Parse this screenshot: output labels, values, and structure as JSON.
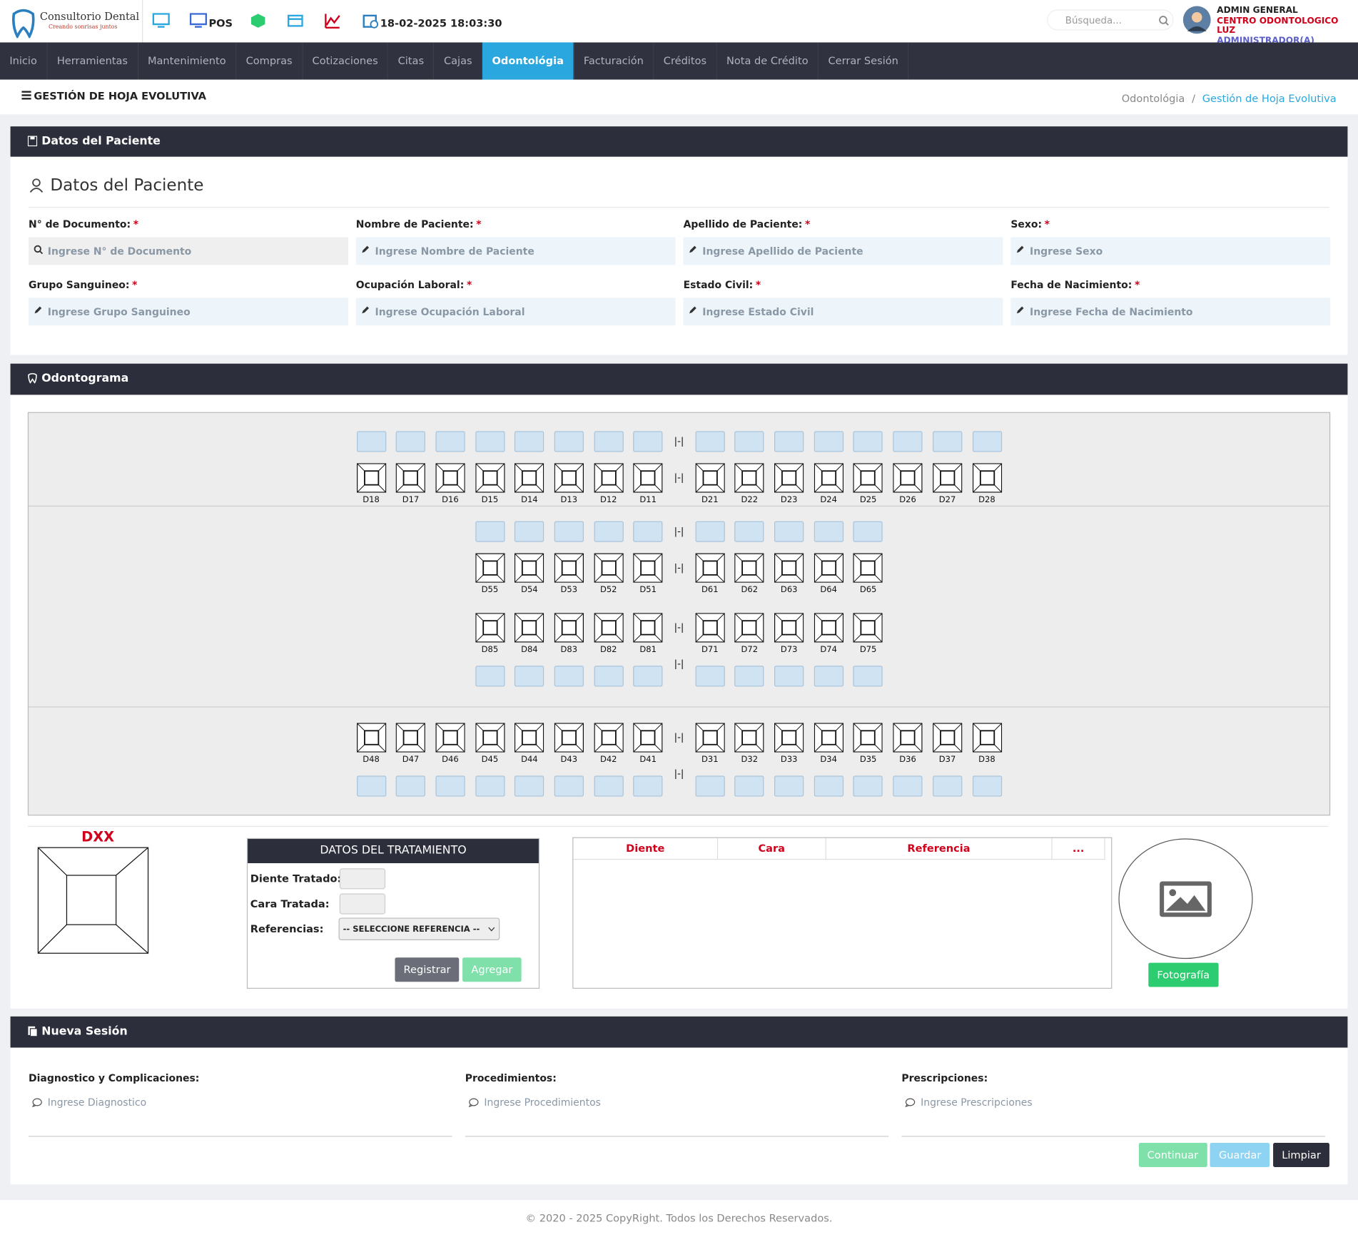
{
  "header": {
    "brand_name": "Consultorio Dental",
    "brand_tagline": "Creando sonrisas juntos",
    "pos": "POS",
    "datetime": "18-02-2025 18:03:30",
    "search_placeholder": "Búsqueda...",
    "user_name": "ADMIN GENERAL",
    "company": "CENTRO ODONTOLOGICO LUZ",
    "role": "ADMINISTRADOR(A) SUCURSAL"
  },
  "nav": {
    "items": [
      "Inicio",
      "Herramientas",
      "Mantenimiento",
      "Compras",
      "Cotizaciones",
      "Citas",
      "Cajas",
      "Odontológia",
      "Facturación",
      "Créditos",
      "Nota de Crédito",
      "Cerrar Sesión"
    ],
    "active": 7
  },
  "page": {
    "title": "GESTIÓN DE HOJA EVOLUTIVA",
    "breadcrumb": [
      "Odontológia",
      "Gestión de Hoja Evolutiva"
    ]
  },
  "patient": {
    "header": "Datos del Paciente",
    "subtitle": "Datos del Paciente",
    "required_mark": "*",
    "fields": [
      {
        "label": "N° de Documento:",
        "placeholder": "Ingrese N° de Documento"
      },
      {
        "label": "Nombre de Paciente:",
        "placeholder": "Ingrese Nombre de Paciente"
      },
      {
        "label": "Apellido de Paciente:",
        "placeholder": "Ingrese Apellido de Paciente"
      },
      {
        "label": "Sexo:",
        "placeholder": "Ingrese Sexo"
      },
      {
        "label": "Grupo Sanguineo:",
        "placeholder": "Ingrese Grupo Sanguineo"
      },
      {
        "label": "Ocupación Laboral:",
        "placeholder": "Ingrese Ocupación Laboral"
      },
      {
        "label": "Estado Civil:",
        "placeholder": "Ingrese Estado Civil"
      },
      {
        "label": "Fecha de Nacimiento:",
        "placeholder": "Ingrese Fecha de Nacimiento"
      }
    ]
  },
  "odontogram": {
    "header": "Odontograma",
    "separator": "|-|",
    "rows": [
      {
        "left": [
          "D18",
          "D17",
          "D16",
          "D15",
          "D14",
          "D13",
          "D12",
          "D11"
        ],
        "right": [
          "D21",
          "D22",
          "D23",
          "D24",
          "D25",
          "D26",
          "D27",
          "D28"
        ]
      },
      {
        "left": [
          "D55",
          "D54",
          "D53",
          "D52",
          "D51"
        ],
        "right": [
          "D61",
          "D62",
          "D63",
          "D64",
          "D65"
        ]
      },
      {
        "left": [
          "D85",
          "D84",
          "D83",
          "D82",
          "D81"
        ],
        "right": [
          "D71",
          "D72",
          "D73",
          "D74",
          "D75"
        ]
      },
      {
        "left": [
          "D48",
          "D47",
          "D46",
          "D45",
          "D44",
          "D43",
          "D42",
          "D41"
        ],
        "right": [
          "D31",
          "D32",
          "D33",
          "D34",
          "D35",
          "D36",
          "D37",
          "D38"
        ]
      }
    ],
    "dxx": "DXX"
  },
  "treatment": {
    "title": "DATOS DEL TRATAMIENTO",
    "tooth_label": "Diente Tratado:",
    "face_label": "Cara Tratada:",
    "reference_label": "Referencias:",
    "select": "-- SELECCIONE REFERENCIA --",
    "register": "Registrar",
    "add": "Agregar"
  },
  "table": {
    "columns": [
      "Diente",
      "Cara",
      "Referencia",
      "..."
    ]
  },
  "photo": {
    "button": "Fotografía"
  },
  "session": {
    "header": "Nueva Sesión",
    "fields": [
      {
        "label": "Diagnostico y Complicaciones:",
        "placeholder": "Ingrese Diagnostico"
      },
      {
        "label": "Procedimientos:",
        "placeholder": "Ingrese Procedimientos"
      },
      {
        "label": "Prescripciones:",
        "placeholder": "Ingrese Prescripciones"
      }
    ],
    "continue": "Continuar",
    "save": "Guardar",
    "clear": "Limpiar"
  },
  "footer": "© 2020 - 2025 CopyRight. Todos los Derechos Reservados."
}
